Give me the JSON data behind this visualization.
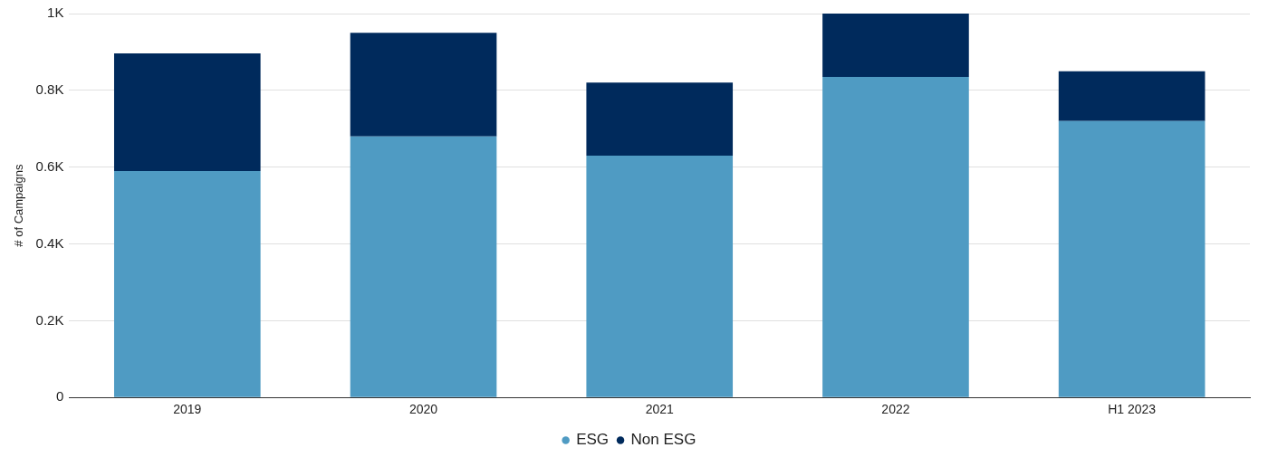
{
  "chart_data": {
    "type": "bar",
    "ylabel": "# of Campaigns",
    "categories": [
      "2019",
      "2020",
      "2021",
      "2022",
      "H1 2023"
    ],
    "series": [
      {
        "name": "ESG",
        "color": "#4f9bc3",
        "values": [
          590,
          680,
          630,
          835,
          720
        ]
      },
      {
        "name": "Non ESG",
        "color": "#002a5c",
        "values": [
          306,
          270,
          190,
          165,
          130
        ]
      }
    ],
    "stacked": true,
    "ylim": [
      0,
      1000
    ],
    "yticks": [
      {
        "value": 0,
        "label": "0"
      },
      {
        "value": 200,
        "label": "0.2K"
      },
      {
        "value": 400,
        "label": "0.4K"
      },
      {
        "value": 600,
        "label": "0.6K"
      },
      {
        "value": 800,
        "label": "0.8K"
      },
      {
        "value": 1000,
        "label": "1K"
      }
    ],
    "grid": "y",
    "legend": "bottom"
  }
}
